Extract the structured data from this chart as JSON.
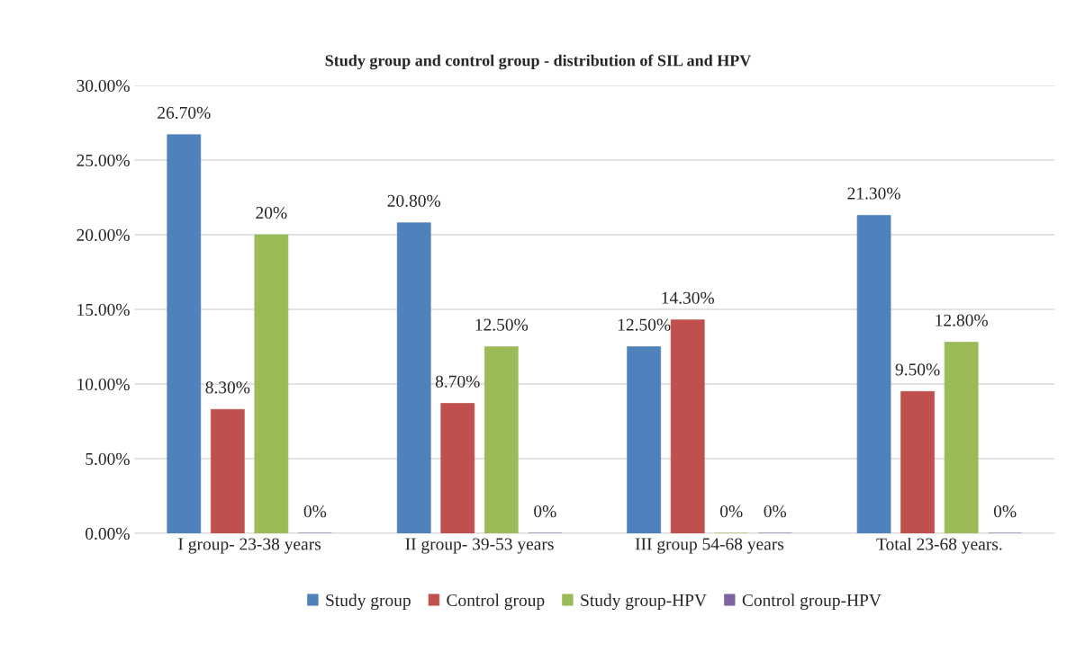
{
  "chart_data": {
    "type": "bar",
    "title": "Study group and control group - distribution of SIL and HPV",
    "categories": [
      "I group- 23-38 years",
      "II group- 39-53 years",
      "III group 54-68 years",
      "Total 23-68 years."
    ],
    "series": [
      {
        "name": "Study group",
        "color": "#4f81bd",
        "values": [
          26.7,
          20.8,
          12.5,
          21.3
        ],
        "value_labels": [
          "26.70%",
          "20.80%",
          "12.50%",
          "21.30%"
        ]
      },
      {
        "name": "Control group",
        "color": "#c0504d",
        "values": [
          8.3,
          8.7,
          14.3,
          9.5
        ],
        "value_labels": [
          "8.30%",
          "8.70%",
          "14.30%",
          "9.50%"
        ]
      },
      {
        "name": "Study group-HPV",
        "color": "#9bbb59",
        "values": [
          20,
          12.5,
          0,
          12.8
        ],
        "value_labels": [
          "20%",
          "12.50%",
          "0%",
          "12.80%"
        ]
      },
      {
        "name": "Control group-HPV",
        "color": "#8064a2",
        "values": [
          0,
          0,
          0,
          0
        ],
        "value_labels": [
          "0%",
          "0%",
          "0%",
          "0%"
        ]
      }
    ],
    "ylim": [
      0,
      30
    ],
    "yticks": [
      {
        "value": 0,
        "label": "0.00%"
      },
      {
        "value": 5,
        "label": "5.00%"
      },
      {
        "value": 10,
        "label": "10.00%"
      },
      {
        "value": 15,
        "label": "15.00%"
      },
      {
        "value": 20,
        "label": "20.00%"
      },
      {
        "value": 25,
        "label": "25.00%"
      },
      {
        "value": 30,
        "label": "30.00%"
      }
    ],
    "grid": "y",
    "legend": "bottom"
  }
}
